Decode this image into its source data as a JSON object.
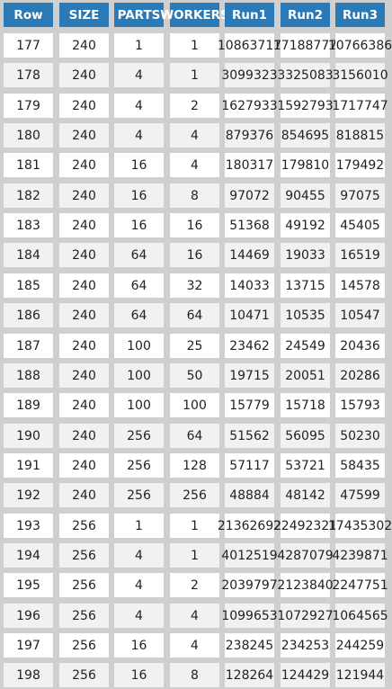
{
  "table": {
    "headers": [
      "Row",
      "SIZE",
      "PARTS",
      "WORKERS",
      "Run1",
      "Run2",
      "Run3"
    ],
    "rows": [
      [
        "177",
        "240",
        "1",
        "1",
        "10863717",
        "17188777",
        "10766386"
      ],
      [
        "178",
        "240",
        "4",
        "1",
        "3099323",
        "3325083",
        "3156010"
      ],
      [
        "179",
        "240",
        "4",
        "2",
        "1627933",
        "1592793",
        "1717747"
      ],
      [
        "180",
        "240",
        "4",
        "4",
        "879376",
        "854695",
        "818815"
      ],
      [
        "181",
        "240",
        "16",
        "4",
        "180317",
        "179810",
        "179492"
      ],
      [
        "182",
        "240",
        "16",
        "8",
        "97072",
        "90455",
        "97075"
      ],
      [
        "183",
        "240",
        "16",
        "16",
        "51368",
        "49192",
        "45405"
      ],
      [
        "184",
        "240",
        "64",
        "16",
        "14469",
        "19033",
        "16519"
      ],
      [
        "185",
        "240",
        "64",
        "32",
        "14033",
        "13715",
        "14578"
      ],
      [
        "186",
        "240",
        "64",
        "64",
        "10471",
        "10535",
        "10547"
      ],
      [
        "187",
        "240",
        "100",
        "25",
        "23462",
        "24549",
        "20436"
      ],
      [
        "188",
        "240",
        "100",
        "50",
        "19715",
        "20051",
        "20286"
      ],
      [
        "189",
        "240",
        "100",
        "100",
        "15779",
        "15718",
        "15793"
      ],
      [
        "190",
        "240",
        "256",
        "64",
        "51562",
        "56095",
        "50230"
      ],
      [
        "191",
        "240",
        "256",
        "128",
        "57117",
        "53721",
        "58435"
      ],
      [
        "192",
        "240",
        "256",
        "256",
        "48884",
        "48142",
        "47599"
      ],
      [
        "193",
        "256",
        "1",
        "1",
        "21362692",
        "22492321",
        "17435302"
      ],
      [
        "194",
        "256",
        "4",
        "1",
        "4012519",
        "4287079",
        "4239871"
      ],
      [
        "195",
        "256",
        "4",
        "2",
        "2039797",
        "2123840",
        "2247751"
      ],
      [
        "196",
        "256",
        "4",
        "4",
        "1099653",
        "1072927",
        "1064565"
      ],
      [
        "197",
        "256",
        "16",
        "4",
        "238245",
        "234253",
        "244259"
      ],
      [
        "198",
        "256",
        "16",
        "8",
        "128264",
        "124429",
        "121944"
      ]
    ]
  }
}
